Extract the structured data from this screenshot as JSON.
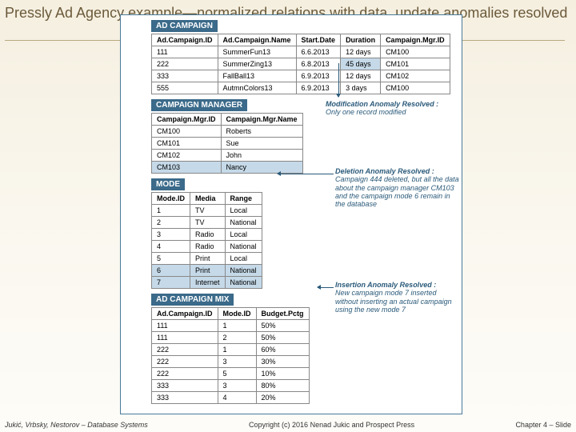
{
  "title": "Pressly Ad Agency example—normalized relations with data, update anomalies resolved",
  "figure": {
    "border_color": "#4a7a9a",
    "header_bg": "#3b6a8a",
    "highlight_bg": "#c5d9e8",
    "sections": {
      "ad_campaign": {
        "title": "AD CAMPAIGN",
        "columns": [
          "Ad.Campaign.ID",
          "Ad.Campaign.Name",
          "Start.Date",
          "Duration",
          "Campaign.Mgr.ID"
        ],
        "rows": [
          [
            "111",
            "SummerFun13",
            "6.6.2013",
            "12 days",
            "CM100"
          ],
          [
            "222",
            "SummerZing13",
            "6.8.2013",
            "45 days",
            "CM101"
          ],
          [
            "333",
            "FallBall13",
            "6.9.2013",
            "12 days",
            "CM102"
          ],
          [
            "555",
            "AutmnColors13",
            "6.9.2013",
            "3 days",
            "CM100"
          ]
        ],
        "highlight": {
          "row": 1,
          "col": 3
        }
      },
      "campaign_manager": {
        "title": "CAMPAIGN MANAGER",
        "columns": [
          "Campaign.Mgr.ID",
          "Campaign.Mgr.Name"
        ],
        "rows": [
          [
            "CM100",
            "Roberts"
          ],
          [
            "CM101",
            "Sue"
          ],
          [
            "CM102",
            "John"
          ],
          [
            "CM103",
            "Nancy"
          ]
        ],
        "highlight_row": 3
      },
      "mode": {
        "title": "MODE",
        "columns": [
          "Mode.ID",
          "Media",
          "Range"
        ],
        "rows": [
          [
            "1",
            "TV",
            "Local"
          ],
          [
            "2",
            "TV",
            "National"
          ],
          [
            "3",
            "Radio",
            "Local"
          ],
          [
            "4",
            "Radio",
            "National"
          ],
          [
            "5",
            "Print",
            "Local"
          ],
          [
            "6",
            "Print",
            "National"
          ],
          [
            "7",
            "Internet",
            "National"
          ]
        ],
        "highlight_rows": [
          5,
          6
        ]
      },
      "ad_campaign_mix": {
        "title": "AD CAMPAIGN MIX",
        "columns": [
          "Ad.Campaign.ID",
          "Mode.ID",
          "Budget.Pctg"
        ],
        "rows": [
          [
            "111",
            "1",
            "50%"
          ],
          [
            "111",
            "2",
            "50%"
          ],
          [
            "222",
            "1",
            "60%"
          ],
          [
            "222",
            "3",
            "30%"
          ],
          [
            "222",
            "5",
            "10%"
          ],
          [
            "333",
            "3",
            "80%"
          ],
          [
            "333",
            "4",
            "20%"
          ]
        ]
      }
    },
    "annotations": {
      "modification": {
        "title": "Modification Anomaly Resolved :",
        "text": "Only one record modified"
      },
      "deletion": {
        "title": "Deletion Anomaly Resolved :",
        "text": "Campaign 444 deleted, but all the data about the campaign manager CM103 and the campaign mode 6 remain in the database"
      },
      "insertion": {
        "title": "Insertion Anomaly Resolved :",
        "text": "New campaign mode 7 inserted without inserting an actual campaign using the new mode 7"
      }
    }
  },
  "footer": {
    "left": "Jukić, Vrbsky, Nestorov – Database Systems",
    "center": "Copyright (c) 2016 Nenad Jukic and Prospect Press",
    "right": "Chapter 4 – Slide"
  }
}
